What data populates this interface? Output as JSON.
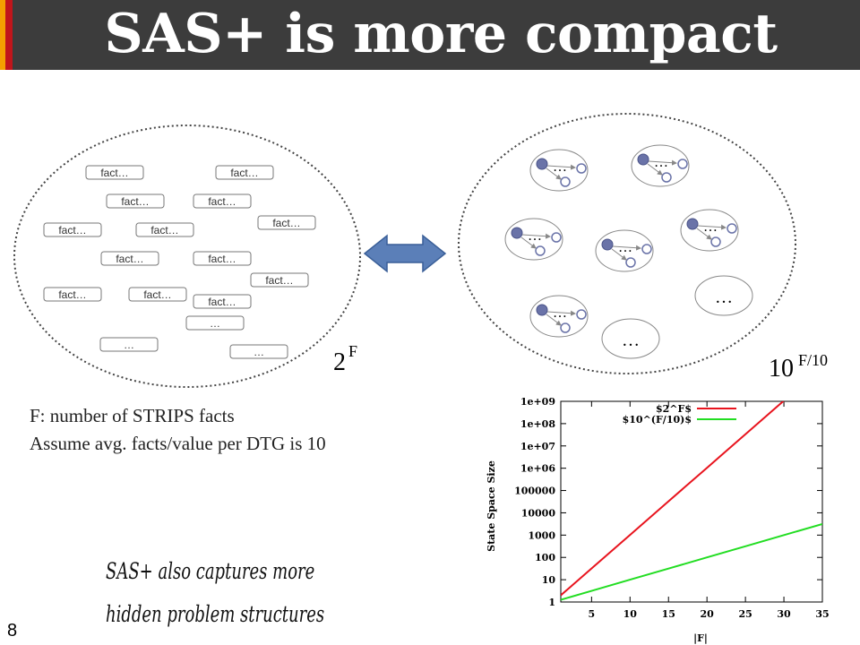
{
  "title": "SAS+ is more compact",
  "page_number": "8",
  "left_set": {
    "facts": [
      "fact…",
      "fact…",
      "fact…",
      "fact…",
      "fact…",
      "fact…",
      "fact…",
      "fact…",
      "fact…",
      "fact…",
      "fact…",
      "fact…",
      "fact…",
      "fact…"
    ],
    "ellipses": [
      "…",
      "…",
      "…"
    ],
    "count_base": "2",
    "count_exp": "F"
  },
  "right_set": {
    "dtg_ellipsis": "…",
    "more_labels": [
      "…",
      "…"
    ],
    "count_base": "10",
    "count_exp": "F/10"
  },
  "description": {
    "line1": "F:  number of STRIPS facts",
    "line2": "Assume avg. facts/value per DTG is 10"
  },
  "note": {
    "line1": "SAS+ also captures more",
    "line2": "hidden problem structures"
  },
  "colors": {
    "title_bar": "#3c3c3c",
    "accent_orange": "#f4a000",
    "accent_red": "#c0151b",
    "arrow": "#5b7fb8",
    "node": "#6a73a8",
    "series_red": "#e8141e",
    "series_green": "#22dd22"
  },
  "chart_data": {
    "type": "line",
    "xlabel": "|F|",
    "ylabel": "State Space Size",
    "y_scale": "log",
    "xlim": [
      1,
      35
    ],
    "ylim": [
      1,
      1000000000
    ],
    "x_ticks": [
      "5",
      "10",
      "15",
      "20",
      "25",
      "30",
      "35"
    ],
    "y_ticks": [
      "1",
      "10",
      "100",
      "1000",
      "10000",
      "100000",
      "1e+06",
      "1e+07",
      "1e+08",
      "1e+09"
    ],
    "legend_position": "top-left",
    "series": [
      {
        "name": "$2^F$",
        "color": "#e8141e",
        "x": [
          1,
          5,
          10,
          15,
          20,
          25,
          30,
          30.4
        ],
        "y": [
          2,
          32,
          1024,
          32768,
          1048576,
          33554432,
          1073741824,
          1400000000
        ]
      },
      {
        "name": "$10^(F/10)$",
        "color": "#22dd22",
        "x": [
          1,
          5,
          10,
          15,
          20,
          25,
          30,
          35
        ],
        "y": [
          1.26,
          3.16,
          10,
          31.6,
          100,
          316,
          1000,
          3162
        ]
      }
    ]
  }
}
